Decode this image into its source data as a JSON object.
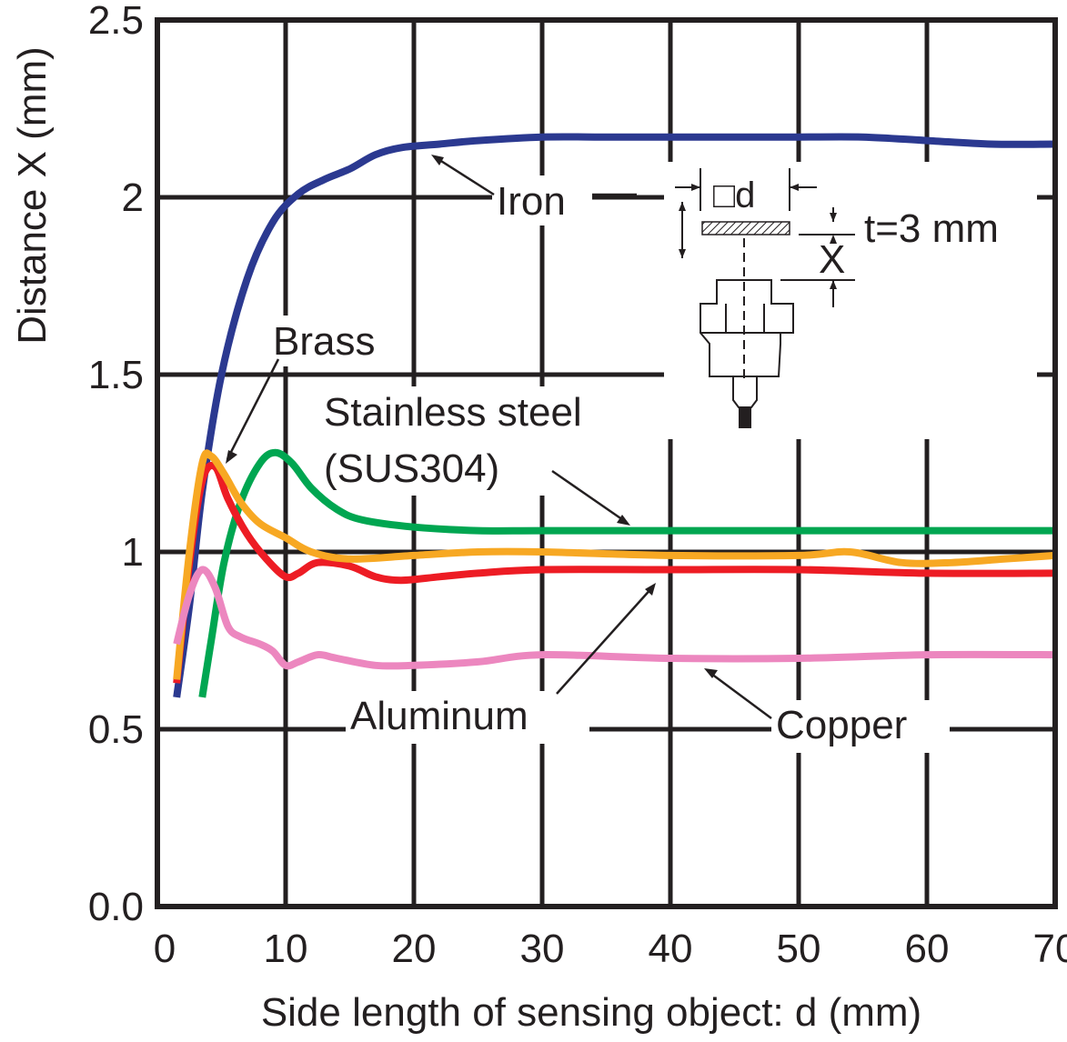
{
  "chart_data": {
    "type": "line",
    "title": "",
    "xlabel": "Side length of sensing object: d (mm)",
    "ylabel": "Distance X (mm)",
    "xlim": [
      0,
      70
    ],
    "ylim": [
      0,
      2.5
    ],
    "x_ticks": [
      0,
      10,
      20,
      30,
      40,
      50,
      60,
      70
    ],
    "y_ticks": [
      0.0,
      0.5,
      1,
      1.5,
      2,
      2.5
    ],
    "x_tick_labels": [
      "0",
      "10",
      "20",
      "30",
      "40",
      "50",
      "60",
      "70"
    ],
    "y_tick_labels": [
      "0.0",
      "0.5",
      "1",
      "1.5",
      "2",
      "2.5"
    ],
    "grid": true,
    "legend": "none",
    "series": [
      {
        "name": "Iron",
        "color": "#2b3990",
        "points": [
          [
            1.5,
            0.59
          ],
          [
            2.5,
            0.85
          ],
          [
            3.5,
            1.17
          ],
          [
            5,
            1.5
          ],
          [
            7,
            1.77
          ],
          [
            9,
            1.93
          ],
          [
            11,
            2.01
          ],
          [
            13,
            2.05
          ],
          [
            15,
            2.08
          ],
          [
            17,
            2.12
          ],
          [
            19,
            2.14
          ],
          [
            22,
            2.15
          ],
          [
            25,
            2.16
          ],
          [
            30,
            2.17
          ],
          [
            35,
            2.17
          ],
          [
            40,
            2.17
          ],
          [
            45,
            2.17
          ],
          [
            50,
            2.17
          ],
          [
            55,
            2.17
          ],
          [
            60,
            2.16
          ],
          [
            65,
            2.15
          ],
          [
            70,
            2.15
          ]
        ]
      },
      {
        "name": "Stainless steel (SUS304)",
        "color": "#00a651",
        "points": [
          [
            3.5,
            0.59
          ],
          [
            4.2,
            0.75
          ],
          [
            5.2,
            0.97
          ],
          [
            6.5,
            1.14
          ],
          [
            8,
            1.25
          ],
          [
            9.2,
            1.28
          ],
          [
            10.5,
            1.25
          ],
          [
            12,
            1.18
          ],
          [
            14,
            1.12
          ],
          [
            16,
            1.09
          ],
          [
            20,
            1.07
          ],
          [
            25,
            1.06
          ],
          [
            30,
            1.06
          ],
          [
            40,
            1.06
          ],
          [
            50,
            1.06
          ],
          [
            60,
            1.06
          ],
          [
            70,
            1.06
          ]
        ]
      },
      {
        "name": "Aluminum",
        "color": "#ed1c24",
        "points": [
          [
            1.5,
            0.63
          ],
          [
            2.5,
            0.97
          ],
          [
            3.5,
            1.2
          ],
          [
            4.5,
            1.24
          ],
          [
            5.5,
            1.15
          ],
          [
            7,
            1.05
          ],
          [
            8.5,
            0.98
          ],
          [
            10,
            0.93
          ],
          [
            11,
            0.94
          ],
          [
            12.5,
            0.97
          ],
          [
            15,
            0.96
          ],
          [
            17,
            0.93
          ],
          [
            19,
            0.92
          ],
          [
            22,
            0.93
          ],
          [
            25,
            0.94
          ],
          [
            30,
            0.95
          ],
          [
            40,
            0.95
          ],
          [
            50,
            0.95
          ],
          [
            60,
            0.94
          ],
          [
            70,
            0.94
          ]
        ]
      },
      {
        "name": "Brass",
        "color": "#f7a823",
        "points": [
          [
            1.5,
            0.64
          ],
          [
            2.5,
            1.0
          ],
          [
            3.5,
            1.25
          ],
          [
            4.2,
            1.27
          ],
          [
            5.2,
            1.22
          ],
          [
            6.5,
            1.14
          ],
          [
            8,
            1.08
          ],
          [
            10,
            1.04
          ],
          [
            12,
            1.0
          ],
          [
            15,
            0.98
          ],
          [
            20,
            0.99
          ],
          [
            25,
            1.0
          ],
          [
            30,
            1.0
          ],
          [
            40,
            0.99
          ],
          [
            50,
            0.99
          ],
          [
            54,
            1.0
          ],
          [
            58,
            0.97
          ],
          [
            62,
            0.97
          ],
          [
            66,
            0.98
          ],
          [
            70,
            0.99
          ]
        ]
      },
      {
        "name": "Copper",
        "color": "#ec87bf",
        "points": [
          [
            1.5,
            0.74
          ],
          [
            2.5,
            0.88
          ],
          [
            3.5,
            0.95
          ],
          [
            4.5,
            0.9
          ],
          [
            5.5,
            0.79
          ],
          [
            6.5,
            0.76
          ],
          [
            8,
            0.74
          ],
          [
            9,
            0.72
          ],
          [
            10,
            0.68
          ],
          [
            11,
            0.69
          ],
          [
            12.5,
            0.71
          ],
          [
            14,
            0.7
          ],
          [
            17,
            0.68
          ],
          [
            20,
            0.68
          ],
          [
            25,
            0.69
          ],
          [
            30,
            0.71
          ],
          [
            40,
            0.7
          ],
          [
            50,
            0.7
          ],
          [
            60,
            0.71
          ],
          [
            70,
            0.71
          ]
        ]
      }
    ],
    "annotations": {
      "iron": "Iron",
      "brass": "Brass",
      "stainless_1": "Stainless steel",
      "stainless_2": "(SUS304)",
      "aluminum": "Aluminum",
      "copper": "Copper"
    },
    "diagram": {
      "d_label": "□d",
      "t_label": "t=3 mm",
      "x_label": "X"
    }
  }
}
